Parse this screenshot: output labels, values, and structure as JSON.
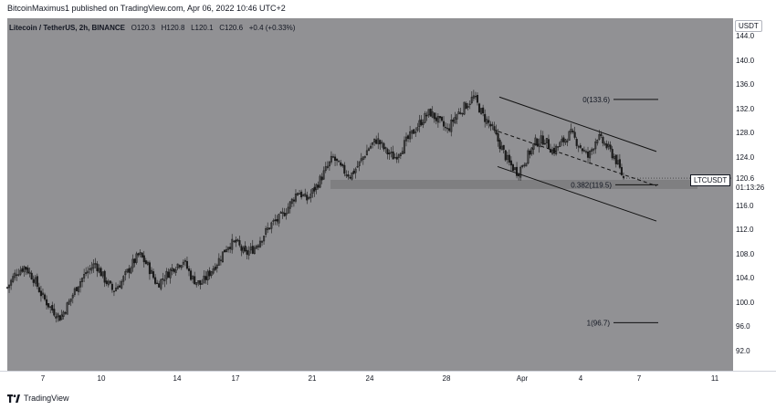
{
  "header": {
    "text": "BitcoinMaximus1 published on TradingView.com, Apr 06, 2022 10:46 UTC+2"
  },
  "symbol": {
    "name": "Litecoin / TetherUS, 2h, BINANCE",
    "o_label": "O",
    "o_value": "120.3",
    "h_label": "H",
    "h_value": "120.8",
    "l_label": "L",
    "l_value": "120.1",
    "c_label": "C",
    "c_value": "120.6",
    "change": "+0.4 (+0.33%)"
  },
  "y_axis": {
    "currency": "USDT",
    "ticks": [
      "144.0",
      "140.0",
      "136.0",
      "132.0",
      "128.0",
      "124.0",
      "120.0",
      "116.0",
      "112.0",
      "108.0",
      "104.0",
      "100.0",
      "96.0",
      "92.0"
    ]
  },
  "x_axis": {
    "ticks": [
      "7",
      "10",
      "14",
      "17",
      "21",
      "24",
      "28",
      "Apr",
      "4",
      "7",
      "11"
    ]
  },
  "price_marker": {
    "ticker": "LTCUSDT",
    "price": "120.6",
    "countdown": "01:13:26"
  },
  "fib_labels": {
    "level_0": "0(133.6)",
    "level_0382": "0.382(119.5)",
    "level_1": "1(96.7)"
  },
  "footer": {
    "brand": "TradingView"
  },
  "colors": {
    "plot_background": "#919194",
    "candle": "#1a1a1a",
    "zone": "#7b7b7e",
    "axis_text": "#131722"
  },
  "chart_data": {
    "type": "candlestick",
    "series_path_close": [
      [
        0,
        102.5
      ],
      [
        0.5,
        105
      ],
      [
        1,
        106
      ],
      [
        1.5,
        104
      ],
      [
        2,
        101
      ],
      [
        2.5,
        99
      ],
      [
        3,
        97.5
      ],
      [
        3.5,
        100
      ],
      [
        4,
        103
      ],
      [
        4.5,
        105
      ],
      [
        5,
        106.5
      ],
      [
        5.5,
        104
      ],
      [
        6,
        102
      ],
      [
        6.5,
        103.5
      ],
      [
        7,
        106
      ],
      [
        7.5,
        108
      ],
      [
        8,
        106
      ],
      [
        8.5,
        103
      ],
      [
        9,
        104.5
      ],
      [
        9.5,
        106
      ],
      [
        10,
        107
      ],
      [
        10.5,
        104
      ],
      [
        11,
        103
      ],
      [
        11.5,
        105
      ],
      [
        12,
        107
      ],
      [
        12.5,
        109.5
      ],
      [
        13,
        110
      ],
      [
        13.5,
        108
      ],
      [
        14,
        109
      ],
      [
        14.5,
        111
      ],
      [
        15,
        113
      ],
      [
        15.5,
        114
      ],
      [
        16,
        116
      ],
      [
        16.5,
        118.5
      ],
      [
        17,
        117
      ],
      [
        17.5,
        119
      ],
      [
        18,
        121.5
      ],
      [
        18.5,
        124
      ],
      [
        19,
        122
      ],
      [
        19.5,
        121
      ],
      [
        20,
        123
      ],
      [
        20.5,
        125.5
      ],
      [
        21,
        127
      ],
      [
        21.5,
        125
      ],
      [
        22,
        124
      ],
      [
        22.5,
        126
      ],
      [
        23,
        128
      ],
      [
        23.5,
        130
      ],
      [
        24,
        131.5
      ],
      [
        24.5,
        130
      ],
      [
        25,
        128.5
      ],
      [
        25.5,
        131
      ],
      [
        26,
        132.5
      ],
      [
        26.5,
        134
      ],
      [
        27,
        131
      ],
      [
        27.5,
        129
      ],
      [
        28,
        126
      ],
      [
        28.5,
        123
      ],
      [
        29,
        121.5
      ],
      [
        29.5,
        124
      ],
      [
        30,
        126.5
      ],
      [
        30.5,
        127
      ],
      [
        31,
        125
      ],
      [
        31.5,
        126.5
      ],
      [
        32,
        128
      ],
      [
        32.5,
        126
      ],
      [
        33,
        124
      ],
      [
        33.5,
        127.5
      ],
      [
        34,
        126
      ],
      [
        34.5,
        124
      ],
      [
        35,
        120.6
      ]
    ],
    "ylim": [
      90,
      146
    ]
  }
}
